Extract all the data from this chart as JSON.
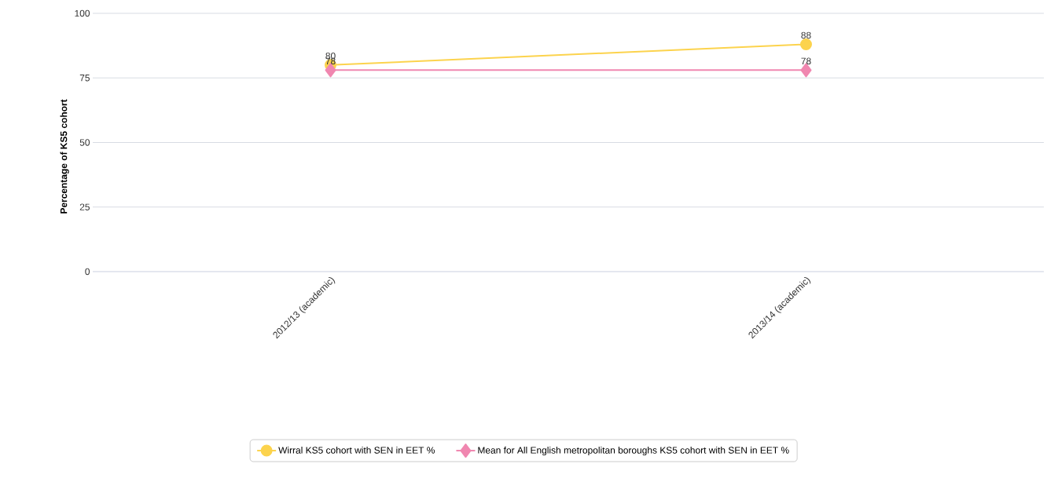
{
  "chart_data": {
    "type": "line",
    "ylabel": "Percentage of KS5 cohort",
    "categories": [
      "2012/13 (academic)",
      "2013/14 (academic)"
    ],
    "series": [
      {
        "name": "Wirral KS5 cohort with SEN in EET %",
        "color": "#fcd34d",
        "marker": "circle",
        "values": [
          80,
          88
        ]
      },
      {
        "name": "Mean for All English metropolitan boroughs KS5 cohort with SEN in EET %",
        "color": "#f087b0",
        "marker": "diamond",
        "values": [
          78,
          78
        ]
      }
    ],
    "ylim": [
      0,
      100
    ],
    "yticks": [
      0,
      25,
      50,
      75,
      100
    ],
    "grid": "y",
    "legend": "bottom",
    "data_labels": true,
    "line_style": "solid"
  }
}
